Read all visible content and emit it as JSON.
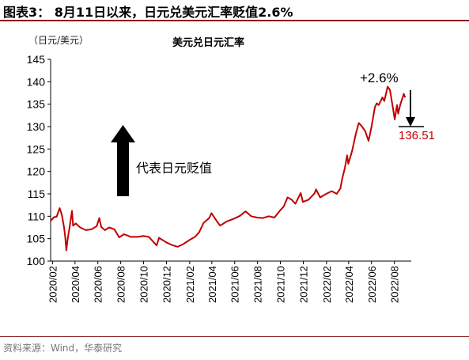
{
  "header": {
    "title": "图表3： 8月11日以来，日元兑美元汇率贬值2.6%"
  },
  "footer": {
    "source": "资料来源：Wind，华泰研究"
  },
  "chart_data": {
    "type": "line",
    "title": "美元兑日元汇率",
    "unit": "（日元/美元）",
    "xlabel": "",
    "ylabel": "",
    "ylim": [
      100,
      145
    ],
    "yticks": [
      100,
      105,
      110,
      115,
      120,
      125,
      130,
      135,
      140,
      145
    ],
    "xlim": [
      "2020-01-27",
      "2022-09-15"
    ],
    "xticks": [
      "2020/02",
      "2020/04",
      "2020/06",
      "2020/08",
      "2020/10",
      "2020/12",
      "2021/02",
      "2021/04",
      "2021/06",
      "2021/08",
      "2021/10",
      "2021/12",
      "2022/02",
      "2022/04",
      "2022/06",
      "2022/08"
    ],
    "color": "#c00000",
    "series": [
      {
        "name": "",
        "points": [
          [
            "2020-01-27",
            109.0
          ],
          [
            "2020-02-05",
            109.8
          ],
          [
            "2020-02-12",
            109.9
          ],
          [
            "2020-02-20",
            111.8
          ],
          [
            "2020-02-26",
            110.3
          ],
          [
            "2020-03-03",
            107.4
          ],
          [
            "2020-03-06",
            105.3
          ],
          [
            "2020-03-09",
            102.4
          ],
          [
            "2020-03-12",
            104.6
          ],
          [
            "2020-03-18",
            107.8
          ],
          [
            "2020-03-24",
            111.2
          ],
          [
            "2020-03-27",
            107.9
          ],
          [
            "2020-04-03",
            108.4
          ],
          [
            "2020-04-15",
            107.5
          ],
          [
            "2020-04-30",
            106.9
          ],
          [
            "2020-05-15",
            107.1
          ],
          [
            "2020-05-29",
            107.8
          ],
          [
            "2020-06-05",
            109.6
          ],
          [
            "2020-06-10",
            107.6
          ],
          [
            "2020-06-20",
            106.9
          ],
          [
            "2020-07-01",
            107.5
          ],
          [
            "2020-07-15",
            107.1
          ],
          [
            "2020-07-28",
            105.3
          ],
          [
            "2020-08-10",
            106.0
          ],
          [
            "2020-08-28",
            105.4
          ],
          [
            "2020-09-15",
            105.4
          ],
          [
            "2020-09-30",
            105.6
          ],
          [
            "2020-10-15",
            105.4
          ],
          [
            "2020-11-05",
            103.5
          ],
          [
            "2020-11-11",
            105.2
          ],
          [
            "2020-11-30",
            104.2
          ],
          [
            "2020-12-15",
            103.6
          ],
          [
            "2020-12-31",
            103.2
          ],
          [
            "2021-01-15",
            103.8
          ],
          [
            "2021-01-31",
            104.7
          ],
          [
            "2021-02-15",
            105.4
          ],
          [
            "2021-02-26",
            106.4
          ],
          [
            "2021-03-10",
            108.5
          ],
          [
            "2021-03-25",
            109.6
          ],
          [
            "2021-03-31",
            110.7
          ],
          [
            "2021-04-15",
            108.8
          ],
          [
            "2021-04-23",
            107.9
          ],
          [
            "2021-05-10",
            108.8
          ],
          [
            "2021-05-31",
            109.5
          ],
          [
            "2021-06-15",
            110.1
          ],
          [
            "2021-06-30",
            111.1
          ],
          [
            "2021-07-15",
            110.0
          ],
          [
            "2021-07-31",
            109.7
          ],
          [
            "2021-08-15",
            109.6
          ],
          [
            "2021-08-31",
            110.0
          ],
          [
            "2021-09-15",
            109.7
          ],
          [
            "2021-09-30",
            111.3
          ],
          [
            "2021-10-10",
            112.2
          ],
          [
            "2021-10-20",
            114.2
          ],
          [
            "2021-10-31",
            113.7
          ],
          [
            "2021-11-10",
            112.8
          ],
          [
            "2021-11-24",
            115.2
          ],
          [
            "2021-11-30",
            113.2
          ],
          [
            "2021-12-15",
            113.7
          ],
          [
            "2021-12-31",
            115.1
          ],
          [
            "2022-01-04",
            116.0
          ],
          [
            "2022-01-15",
            114.2
          ],
          [
            "2022-01-31",
            115.0
          ],
          [
            "2022-02-15",
            115.6
          ],
          [
            "2022-02-28",
            115.0
          ],
          [
            "2022-03-10",
            116.2
          ],
          [
            "2022-03-15",
            118.5
          ],
          [
            "2022-03-22",
            120.8
          ],
          [
            "2022-03-28",
            123.6
          ],
          [
            "2022-03-31",
            121.7
          ],
          [
            "2022-04-10",
            124.5
          ],
          [
            "2022-04-20",
            128.3
          ],
          [
            "2022-04-28",
            130.8
          ],
          [
            "2022-05-05",
            130.2
          ],
          [
            "2022-05-15",
            129.0
          ],
          [
            "2022-05-24",
            126.8
          ],
          [
            "2022-06-01",
            130.0
          ],
          [
            "2022-06-10",
            134.3
          ],
          [
            "2022-06-15",
            135.2
          ],
          [
            "2022-06-20",
            134.8
          ],
          [
            "2022-06-30",
            136.5
          ],
          [
            "2022-07-05",
            135.7
          ],
          [
            "2022-07-14",
            138.9
          ],
          [
            "2022-07-20",
            138.2
          ],
          [
            "2022-07-28",
            134.2
          ],
          [
            "2022-08-02",
            131.6
          ],
          [
            "2022-08-08",
            134.8
          ],
          [
            "2022-08-11",
            132.9
          ],
          [
            "2022-08-17",
            135.0
          ],
          [
            "2022-08-23",
            136.5
          ],
          [
            "2022-08-26",
            137.3
          ],
          [
            "2022-08-30",
            136.5
          ]
        ]
      }
    ],
    "annotations": {
      "arrow_label": "代表日元贬值",
      "change_label": "+2.6%",
      "last_value_label": "136.51",
      "last_value_color": "#c00000"
    }
  }
}
